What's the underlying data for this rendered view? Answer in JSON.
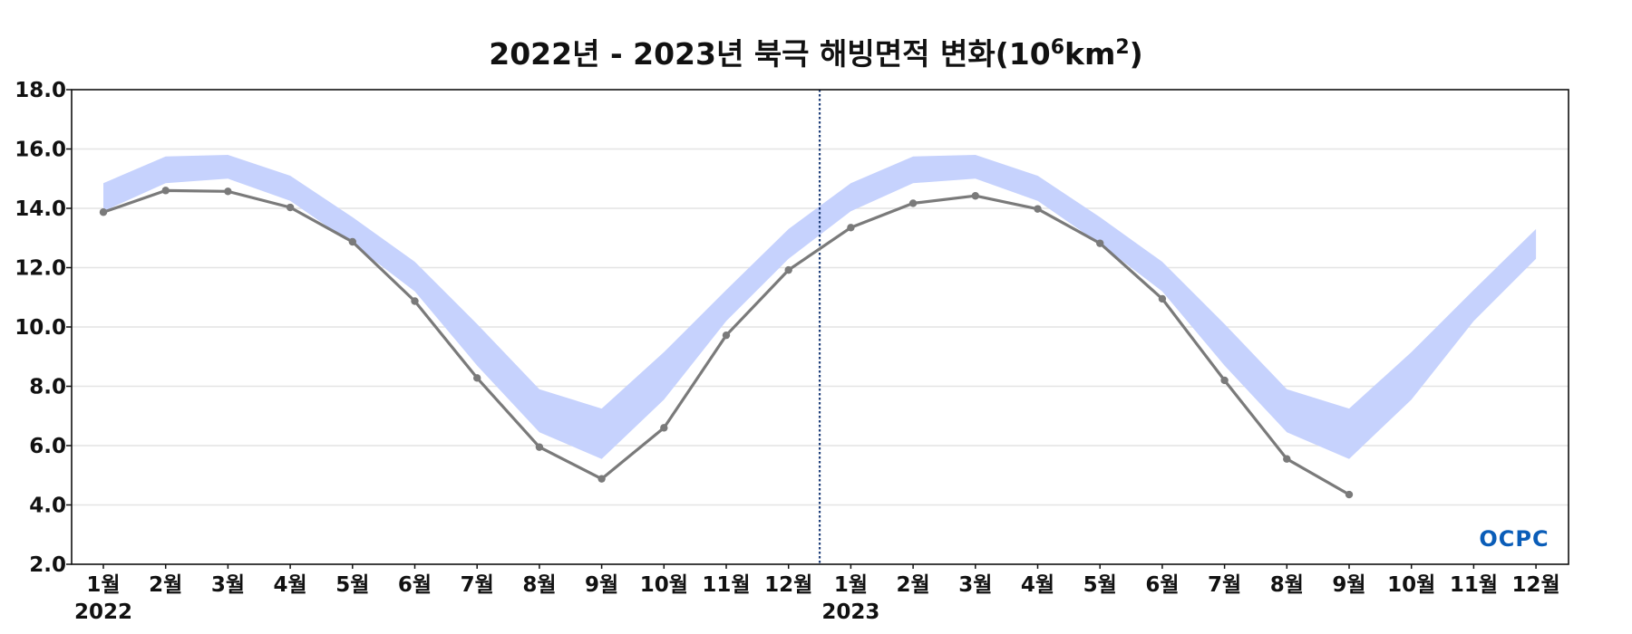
{
  "chart_data": {
    "type": "line",
    "title": {
      "main": "2022년 - 2023년 북극 해빙면적 변화(10",
      "sup1": "6",
      "mid": "km",
      "sup2": "2",
      "end": ")"
    },
    "ylim": [
      2.0,
      18.0
    ],
    "yticks": [
      "2.0",
      "4.0",
      "6.0",
      "8.0",
      "10.0",
      "12.0",
      "14.0",
      "16.0",
      "18.0"
    ],
    "categories": [
      "1월",
      "2월",
      "3월",
      "4월",
      "5월",
      "6월",
      "7월",
      "8월",
      "9월",
      "10월",
      "11월",
      "12월",
      "1월",
      "2월",
      "3월",
      "4월",
      "5월",
      "6월",
      "7월",
      "8월",
      "9월",
      "10월",
      "11월",
      "12월"
    ],
    "year_labels": [
      {
        "text": "2022",
        "index": 0
      },
      {
        "text": "2023",
        "index": 12
      }
    ],
    "divider_after_index": 11,
    "band": {
      "upper": [
        14.85,
        15.75,
        15.8,
        15.1,
        13.7,
        12.2,
        10.1,
        7.9,
        7.25,
        9.15,
        11.25,
        13.3,
        14.85,
        15.75,
        15.8,
        15.1,
        13.7,
        12.2,
        10.1,
        7.9,
        7.25,
        9.15,
        11.25,
        13.3
      ],
      "lower": [
        13.9,
        14.85,
        15.0,
        14.25,
        12.8,
        11.2,
        8.7,
        6.45,
        5.55,
        7.55,
        10.2,
        12.3,
        13.9,
        14.85,
        15.0,
        14.25,
        12.8,
        11.2,
        8.7,
        6.45,
        5.55,
        7.55,
        10.2,
        12.3
      ]
    },
    "series": [
      {
        "values": [
          13.87,
          14.6,
          14.57,
          14.03,
          12.87,
          10.87,
          8.28,
          5.95,
          4.88,
          6.6,
          9.72,
          11.92,
          13.35,
          14.17,
          14.42,
          13.98,
          12.82,
          10.95,
          8.2,
          5.55,
          4.35,
          null,
          null,
          null
        ]
      }
    ],
    "grid": true,
    "colors": {
      "band": "#c6d2fd",
      "line": "#7a7a7a",
      "grid": "#e4e4e4",
      "divider": "#1f3f7a",
      "axis": "#111111"
    }
  },
  "logo": {
    "text": "OCPC",
    "colors": [
      "#0a5db8",
      "#2ea7e0"
    ]
  }
}
